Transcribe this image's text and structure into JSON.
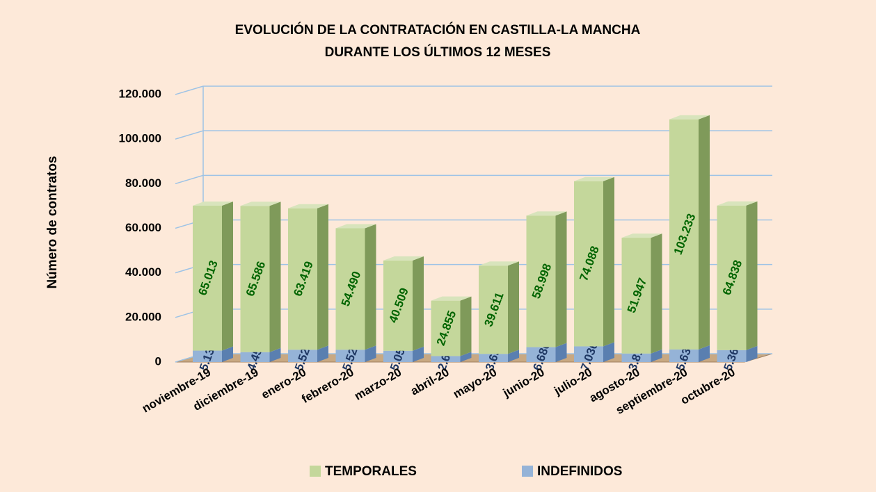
{
  "chart_data": {
    "type": "bar3d-stacked",
    "title": [
      "EVOLUCIÓN DE LA CONTRATACIÓN EN CASTILLA-LA MANCHA",
      "DURANTE LOS ÚLTIMOS 12 MESES"
    ],
    "y_label": "Número de contratos",
    "categories": [
      "noviembre-19",
      "diciembre-19",
      "enero-20",
      "febrero-20",
      "marzo-20",
      "abril-20",
      "mayo-20",
      "junio-20",
      "julio-20",
      "agosto-20",
      "septiembre-20",
      "octubre-20"
    ],
    "series": [
      {
        "name": "TEMPORALES",
        "color": "#c4d79b",
        "values": [
          65013,
          65586,
          63419,
          54490,
          40509,
          24855,
          39611,
          58998,
          74088,
          51947,
          103233,
          64838
        ],
        "value_labels": [
          "65.013",
          "65.586",
          "63.419",
          "54.490",
          "40.509",
          "24.855",
          "39.611",
          "58.998",
          "74.088",
          "51.947",
          "103.233",
          "64.838"
        ]
      },
      {
        "name": "INDEFINIDOS",
        "color": "#95b3d7",
        "values": [
          5132,
          4457,
          5527,
          5521,
          5055,
          2684,
          3651,
          6686,
          7036,
          3819,
          5633,
          5362
        ],
        "value_labels": [
          "5.132",
          "4.457",
          "5.527",
          "5.521",
          "5.055",
          "2.684",
          "3.651",
          "6.686",
          "7.036",
          "3.819",
          "5.633",
          "5.362"
        ]
      }
    ],
    "ylim": [
      0,
      120000
    ],
    "yticks": [
      0,
      {
        "value": 20000,
        "label": "20.000"
      },
      {
        "value": 40000,
        "label": "40.000"
      },
      {
        "value": 60000,
        "label": "60.000"
      },
      {
        "value": 80000,
        "label": "80.000"
      },
      {
        "value": 100000,
        "label": "100.000"
      },
      {
        "value": 120000,
        "label": "120.000"
      }
    ],
    "grid": true
  }
}
